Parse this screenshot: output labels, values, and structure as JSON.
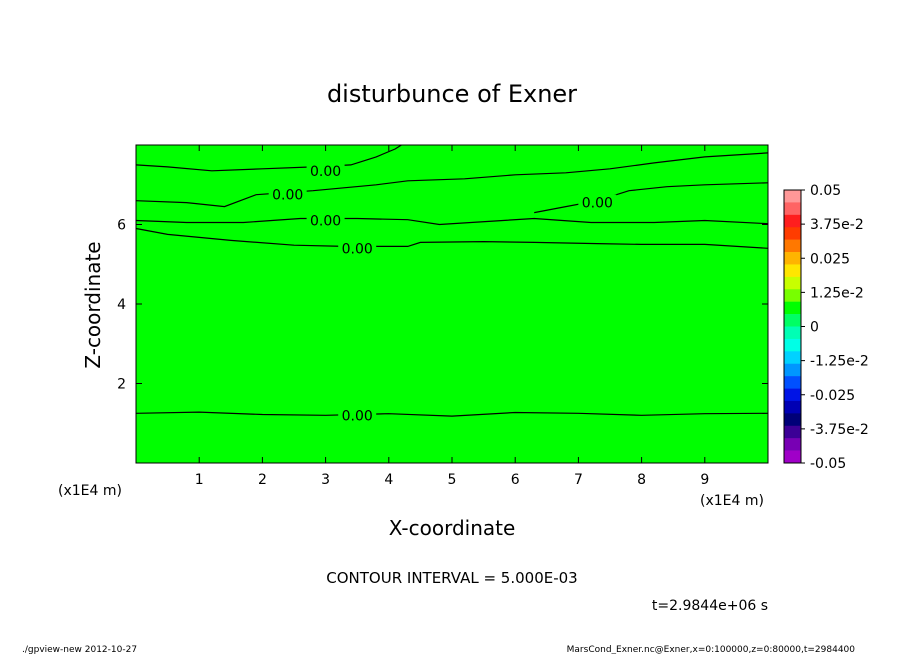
{
  "chart_data": {
    "type": "contour",
    "title": "disturbunce of Exner",
    "xlabel": "X-coordinate",
    "ylabel": "Z-coordinate",
    "x_unit": "(x1E4 m)",
    "y_unit": "(x1E4 m)",
    "xlim": [
      0,
      10
    ],
    "ylim": [
      0,
      8
    ],
    "x_ticks": [
      1,
      2,
      3,
      4,
      5,
      6,
      7,
      8,
      9
    ],
    "y_ticks": [
      2,
      4,
      6
    ],
    "field_color": "#00ff00",
    "contour_interval_text": "CONTOUR INTERVAL = 5.000E-03",
    "time_text": "t=2.9844e+06 s",
    "contour_label": "0.00",
    "contours": [
      {
        "label_at": [
          3.5,
          1.2
        ],
        "points": [
          [
            0,
            1.25
          ],
          [
            1,
            1.28
          ],
          [
            2,
            1.22
          ],
          [
            3,
            1.2
          ],
          [
            4,
            1.24
          ],
          [
            5,
            1.18
          ],
          [
            6,
            1.27
          ],
          [
            7,
            1.25
          ],
          [
            8,
            1.2
          ],
          [
            9,
            1.24
          ],
          [
            10,
            1.25
          ]
        ]
      },
      {
        "label_at": [
          3.5,
          5.4
        ],
        "points": [
          [
            0,
            5.9
          ],
          [
            0.5,
            5.75
          ],
          [
            1.5,
            5.6
          ],
          [
            2.5,
            5.48
          ],
          [
            3.3,
            5.45
          ],
          [
            4.3,
            5.45
          ],
          [
            4.5,
            5.55
          ],
          [
            5.5,
            5.57
          ],
          [
            6.3,
            5.55
          ],
          [
            7.3,
            5.52
          ],
          [
            8,
            5.5
          ],
          [
            9,
            5.5
          ],
          [
            10,
            5.4
          ]
        ]
      },
      {
        "label_at": [
          3.0,
          6.1
        ],
        "points": [
          [
            0,
            6.1
          ],
          [
            0.8,
            6.05
          ],
          [
            1.7,
            6.05
          ],
          [
            2.6,
            6.15
          ],
          [
            3.5,
            6.15
          ],
          [
            4.3,
            6.12
          ],
          [
            4.8,
            6.0
          ],
          [
            5.3,
            6.05
          ],
          [
            6.3,
            6.15
          ],
          [
            7.2,
            6.05
          ],
          [
            8.2,
            6.05
          ],
          [
            9,
            6.1
          ],
          [
            10,
            6.02
          ]
        ]
      },
      {
        "label_at": [
          2.4,
          6.75
        ],
        "points": [
          [
            0,
            6.6
          ],
          [
            0.8,
            6.55
          ],
          [
            1.4,
            6.45
          ],
          [
            1.9,
            6.75
          ],
          [
            2.8,
            6.85
          ],
          [
            3.8,
            7.0
          ],
          [
            4.3,
            7.1
          ],
          [
            5.2,
            7.15
          ],
          [
            6,
            7.25
          ],
          [
            6.8,
            7.3
          ],
          [
            7.5,
            7.4
          ],
          [
            8.2,
            7.55
          ],
          [
            9,
            7.7
          ],
          [
            10,
            7.8
          ]
        ]
      },
      {
        "label_at": [
          3.0,
          7.35
        ],
        "points": [
          [
            0,
            7.5
          ],
          [
            0.5,
            7.45
          ],
          [
            1.2,
            7.35
          ],
          [
            2.0,
            7.4
          ],
          [
            2.8,
            7.45
          ],
          [
            3.4,
            7.5
          ],
          [
            3.8,
            7.7
          ],
          [
            4.1,
            7.9
          ],
          [
            4.2,
            8.0
          ]
        ]
      },
      {
        "label_at": [
          7.3,
          6.55
        ],
        "points": [
          [
            6.3,
            6.3
          ],
          [
            6.8,
            6.45
          ],
          [
            7.3,
            6.6
          ],
          [
            7.8,
            6.85
          ],
          [
            8.4,
            6.95
          ],
          [
            9,
            7.0
          ],
          [
            10,
            7.05
          ]
        ]
      }
    ],
    "colorbar": {
      "labels": [
        "0.05",
        "3.75e-2",
        "0.025",
        "1.25e-2",
        "0",
        "-1.25e-2",
        "-0.025",
        "-3.75e-2",
        "-0.05"
      ],
      "colors": [
        "#ff9898",
        "#ff6464",
        "#ff1e1e",
        "#ff3c00",
        "#ff7800",
        "#ffb400",
        "#ffe600",
        "#c8ff00",
        "#78ff00",
        "#00ff00",
        "#00ff64",
        "#00ffb4",
        "#00ffe6",
        "#00d2ff",
        "#0096ff",
        "#0050ff",
        "#0014e6",
        "#0000b4",
        "#000078",
        "#3c0096",
        "#7800b4",
        "#a000c8"
      ]
    }
  },
  "footer": {
    "left": "./gpview-new  2012-10-27",
    "right": "MarsCond_Exner.nc@Exner,x=0:100000,z=0:80000,t=2984400"
  }
}
